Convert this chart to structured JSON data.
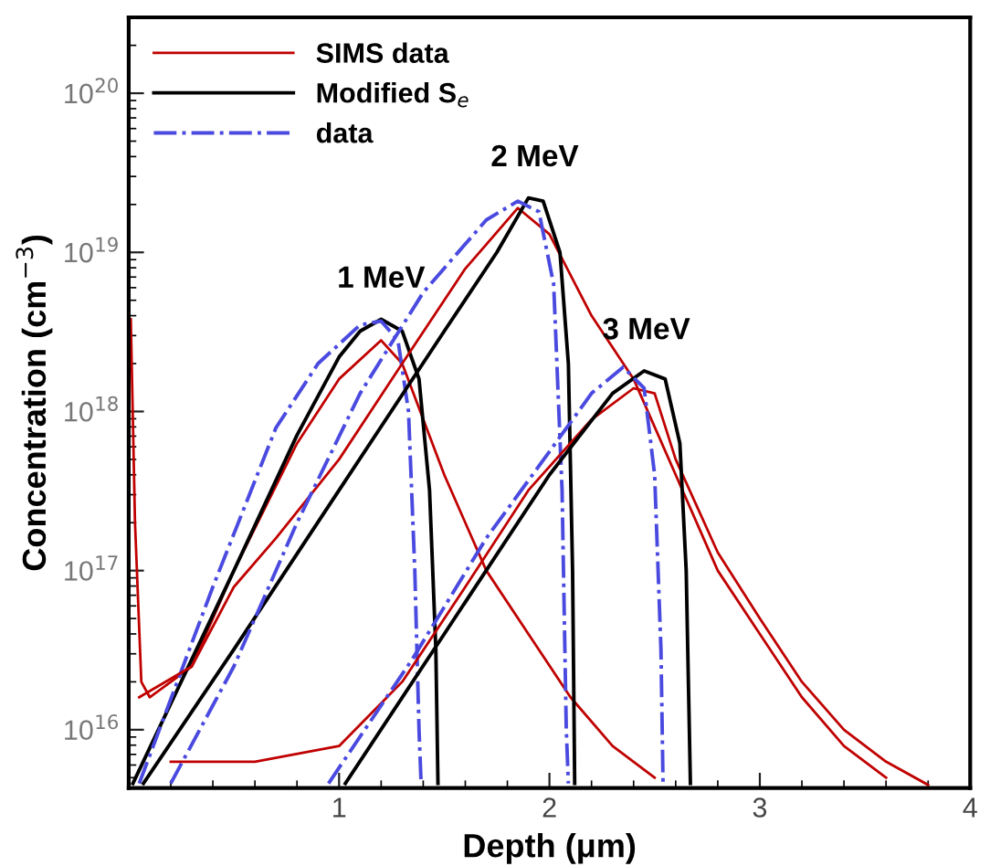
{
  "chart_data": {
    "type": "line",
    "xlabel": "Depth (μm)",
    "ylabel": "Concentration (cm$^{−3}$)",
    "log": "y",
    "xlim": [
      0,
      4
    ],
    "ylim": [
      4300000000000000.0,
      3e+20
    ],
    "xticks": [
      1,
      2,
      3,
      4
    ],
    "yticks": [
      {
        "value": 1e+16,
        "label": "10$^{16}$"
      },
      {
        "value": 1e+17,
        "label": "10$^{17}$"
      },
      {
        "value": 1e+18,
        "label": "10$^{18}$"
      },
      {
        "value": 1e+19,
        "label": "10$^{19}$"
      },
      {
        "value": 1e+20,
        "label": "10$^{20}$"
      }
    ],
    "grid": false,
    "legend": "top left",
    "annotations": [
      {
        "text": "1 MeV",
        "x": 1.2,
        "y": 3.8e+18
      },
      {
        "text": "2 MeV",
        "x": 1.93,
        "y": 2.2e+19
      },
      {
        "text": "3 MeV",
        "x": 2.46,
        "y": 1.8e+18
      }
    ],
    "series": [
      {
        "name": "SIMS data",
        "color": "#c00000",
        "line_style": "solid",
        "x": [
          0.01,
          0.03,
          0.06,
          0.1,
          0.3,
          0.5,
          0.8,
          1.0,
          1.2,
          1.3,
          1.5,
          1.7,
          1.9,
          2.1,
          2.3,
          2.5
        ],
        "values": [
          3.8e+18,
          2e+17,
          2e+16,
          1.6e+16,
          2.5e+16,
          1e+17,
          6.3e+17,
          1.6e+18,
          2.8e+18,
          2e+18,
          4e+17,
          1e+17,
          4e+16,
          1.6e+16,
          7900000000000000.0,
          5000000000000000.0
        ]
      },
      {
        "name": "Modified S$_{e}$",
        "color": "#000000",
        "line_style": "solid",
        "x": [
          0.02,
          0.5,
          0.8,
          1.0,
          1.1,
          1.2,
          1.3,
          1.38,
          1.43,
          1.46,
          1.47
        ],
        "values": [
          4600000000000000.0,
          1e+17,
          7.1e+17,
          2.2e+18,
          3.2e+18,
          3.8e+18,
          3.2e+18,
          1.6e+18,
          3.2e+17,
          3.2e+16,
          4600000000000000.0
        ]
      },
      {
        "name": "data",
        "color": "#4a4ae0",
        "line_style": "dashdot",
        "x": [
          0.05,
          0.4,
          0.7,
          0.9,
          1.1,
          1.2,
          1.28,
          1.33,
          1.36,
          1.38,
          1.39
        ],
        "values": [
          4600000000000000.0,
          7.9e+16,
          7.9e+17,
          2e+18,
          3.5e+18,
          3.7e+18,
          2.8e+18,
          1e+18,
          1e+17,
          1e+16,
          4600000000000000.0
        ]
      },
      {
        "color": "#c00000",
        "line_style": "solid",
        "x": [
          0.05,
          0.3,
          0.5,
          0.7,
          1.0,
          1.3,
          1.6,
          1.85,
          2.0,
          2.2,
          2.4,
          2.6,
          2.8,
          3.0,
          3.2,
          3.4,
          3.6
        ],
        "values": [
          1.6e+16,
          2.5e+16,
          7.9e+16,
          1.6e+17,
          5e+17,
          2e+18,
          7.9e+18,
          1.9e+19,
          1.3e+19,
          4e+18,
          1.6e+18,
          4e+17,
          1e+17,
          4e+16,
          1.6e+16,
          7900000000000000.0,
          5000000000000000.0
        ]
      },
      {
        "color": "#000000",
        "line_style": "solid",
        "x": [
          0.07,
          0.5,
          1.0,
          1.5,
          1.75,
          1.9,
          1.97,
          2.05,
          2.09,
          2.11,
          2.12
        ],
        "values": [
          4600000000000000.0,
          3.2e+16,
          3.2e+17,
          3.2e+18,
          1e+19,
          2.2e+19,
          2.1e+19,
          1e+19,
          2e+18,
          1e+17,
          4600000000000000.0
        ]
      },
      {
        "color": "#4a4ae0",
        "line_style": "dashdot",
        "x": [
          0.2,
          0.5,
          0.8,
          1.1,
          1.4,
          1.7,
          1.85,
          1.95,
          2.02,
          2.06,
          2.08,
          2.09
        ],
        "values": [
          4600000000000000.0,
          2.5e+16,
          2e+17,
          1.3e+18,
          5.6e+18,
          1.6e+19,
          2.1e+19,
          1.8e+19,
          6.3e+18,
          3.2e+17,
          1e+16,
          4600000000000000.0
        ]
      },
      {
        "color": "#c00000",
        "line_style": "solid",
        "x": [
          0.2,
          0.6,
          1.0,
          1.3,
          1.6,
          1.9,
          2.2,
          2.4,
          2.5,
          2.6,
          2.8,
          3.0,
          3.2,
          3.4,
          3.6,
          3.8
        ],
        "values": [
          6300000000000000.0,
          6300000000000000.0,
          7900000000000000.0,
          2e+16,
          7.9e+16,
          3.2e+17,
          8.9e+17,
          1.4e+18,
          1.3e+18,
          5e+17,
          1.3e+17,
          5e+16,
          2e+16,
          1e+16,
          6300000000000000.0,
          4500000000000000.0
        ]
      },
      {
        "color": "#000000",
        "line_style": "solid",
        "x": [
          1.03,
          1.5,
          2.0,
          2.3,
          2.45,
          2.55,
          2.62,
          2.65,
          2.67
        ],
        "values": [
          4600000000000000.0,
          4e+16,
          4e+17,
          1.3e+18,
          1.8e+18,
          1.6e+18,
          6.3e+17,
          1e+17,
          4600000000000000.0
        ]
      },
      {
        "color": "#4a4ae0",
        "line_style": "dashdot",
        "x": [
          0.95,
          1.35,
          1.7,
          2.0,
          2.2,
          2.35,
          2.45,
          2.5,
          2.53,
          2.54
        ],
        "values": [
          4600000000000000.0,
          2.8e+16,
          1.6e+17,
          5.6e+17,
          1.3e+18,
          1.9e+18,
          1.4e+18,
          4e+17,
          3.2e+16,
          4600000000000000.0
        ]
      }
    ]
  }
}
